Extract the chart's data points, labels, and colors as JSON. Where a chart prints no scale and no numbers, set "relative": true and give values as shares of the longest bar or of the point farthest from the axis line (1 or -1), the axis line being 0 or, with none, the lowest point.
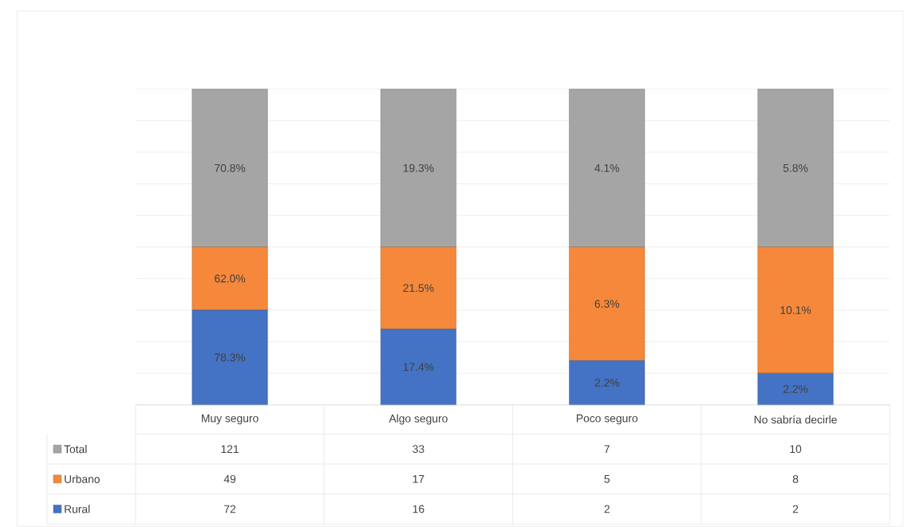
{
  "chart_data": {
    "type": "bar",
    "stacked": true,
    "relative": true,
    "grid": "y",
    "legend": "bottom",
    "categories": [
      "Muy seguro",
      "Algo seguro",
      "Poco seguro",
      "No sabría decirle"
    ],
    "series": [
      {
        "name": "Rural",
        "color": "#4472c4",
        "values": [
          0.3,
          0.24,
          0.14,
          0.1
        ]
      },
      {
        "name": "Urbano",
        "color": "#f5883a",
        "values": [
          0.2,
          0.26,
          0.36,
          0.4
        ]
      },
      {
        "name": "Total",
        "color": "#a5a5a5",
        "values": [
          0.5,
          0.5,
          0.5,
          0.5
        ]
      }
    ],
    "annotations": [
      "121",
      "33",
      "7",
      "10",
      "49",
      "17",
      "5",
      "8",
      "72",
      "16",
      "2",
      "2",
      "78.3%",
      "17.4%",
      "2.2%",
      "2.2%",
      "62.0%",
      "21.5%",
      "6.3%",
      "10.1%",
      "70.8%",
      "19.3%",
      "4.1%",
      "5.8%"
    ]
  }
}
